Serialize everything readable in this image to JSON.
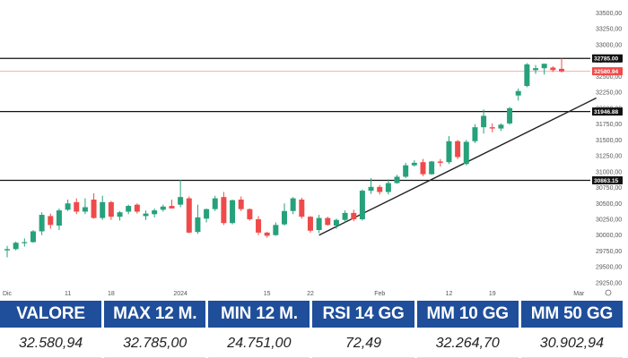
{
  "chart_data": {
    "type": "candlestick",
    "y_ticks": [
      "33500,00",
      "33250,00",
      "33000,00",
      "32750,00",
      "32500,00",
      "32250,00",
      "32000,00",
      "31750,00",
      "31500,00",
      "31250,00",
      "31000,00",
      "30750,00",
      "30500,00",
      "30250,00",
      "30000,00",
      "29750,00",
      "29500,00",
      "29250,00"
    ],
    "ylim": [
      29150,
      33620
    ],
    "x_labels": [
      {
        "text": "Dic",
        "index": 0
      },
      {
        "text": "11",
        "index": 7
      },
      {
        "text": "18",
        "index": 12
      },
      {
        "text": "2024",
        "index": 20
      },
      {
        "text": "15",
        "index": 30
      },
      {
        "text": "22",
        "index": 35
      },
      {
        "text": "Feb",
        "index": 43
      },
      {
        "text": "12",
        "index": 51
      },
      {
        "text": "19",
        "index": 56
      },
      {
        "text": "Mar",
        "index": 66
      }
    ],
    "candles": [
      {
        "o": 29760,
        "h": 29830,
        "l": 29650,
        "c": 29780
      },
      {
        "o": 29780,
        "h": 29900,
        "l": 29760,
        "c": 29880
      },
      {
        "o": 29880,
        "h": 29950,
        "l": 29820,
        "c": 29890
      },
      {
        "o": 29890,
        "h": 30080,
        "l": 29880,
        "c": 30060
      },
      {
        "o": 30060,
        "h": 30360,
        "l": 30000,
        "c": 30320
      },
      {
        "o": 30300,
        "h": 30340,
        "l": 30100,
        "c": 30160
      },
      {
        "o": 30150,
        "h": 30420,
        "l": 30080,
        "c": 30390
      },
      {
        "o": 30400,
        "h": 30560,
        "l": 30380,
        "c": 30500
      },
      {
        "o": 30520,
        "h": 30580,
        "l": 30330,
        "c": 30370
      },
      {
        "o": 30370,
        "h": 30580,
        "l": 30330,
        "c": 30440
      },
      {
        "o": 30560,
        "h": 30660,
        "l": 30260,
        "c": 30270
      },
      {
        "o": 30270,
        "h": 30620,
        "l": 30240,
        "c": 30520
      },
      {
        "o": 30520,
        "h": 30540,
        "l": 30240,
        "c": 30290
      },
      {
        "o": 30290,
        "h": 30380,
        "l": 30230,
        "c": 30360
      },
      {
        "o": 30370,
        "h": 30480,
        "l": 30330,
        "c": 30460
      },
      {
        "o": 30480,
        "h": 30500,
        "l": 30340,
        "c": 30370
      },
      {
        "o": 30300,
        "h": 30390,
        "l": 30240,
        "c": 30340
      },
      {
        "o": 30330,
        "h": 30420,
        "l": 30280,
        "c": 30390
      },
      {
        "o": 30400,
        "h": 30480,
        "l": 30370,
        "c": 30450
      },
      {
        "o": 30460,
        "h": 30560,
        "l": 30420,
        "c": 30420
      },
      {
        "o": 30480,
        "h": 30870,
        "l": 30440,
        "c": 30600
      },
      {
        "o": 30580,
        "h": 30610,
        "l": 30030,
        "c": 30040
      },
      {
        "o": 30050,
        "h": 30480,
        "l": 30020,
        "c": 30280
      },
      {
        "o": 30260,
        "h": 30420,
        "l": 30200,
        "c": 30410
      },
      {
        "o": 30410,
        "h": 30620,
        "l": 30380,
        "c": 30580
      },
      {
        "o": 30600,
        "h": 30680,
        "l": 30160,
        "c": 30190
      },
      {
        "o": 30190,
        "h": 30560,
        "l": 30170,
        "c": 30550
      },
      {
        "o": 30560,
        "h": 30610,
        "l": 30380,
        "c": 30410
      },
      {
        "o": 30410,
        "h": 30420,
        "l": 30230,
        "c": 30250
      },
      {
        "o": 30250,
        "h": 30300,
        "l": 30000,
        "c": 30040
      },
      {
        "o": 30040,
        "h": 30050,
        "l": 29960,
        "c": 29990
      },
      {
        "o": 30000,
        "h": 30200,
        "l": 29990,
        "c": 30160
      },
      {
        "o": 30170,
        "h": 30500,
        "l": 30150,
        "c": 30380
      },
      {
        "o": 30380,
        "h": 30600,
        "l": 30330,
        "c": 30580
      },
      {
        "o": 30560,
        "h": 30590,
        "l": 30260,
        "c": 30290
      },
      {
        "o": 30290,
        "h": 30300,
        "l": 30040,
        "c": 30070
      },
      {
        "o": 30080,
        "h": 30320,
        "l": 30030,
        "c": 30270
      },
      {
        "o": 30270,
        "h": 30290,
        "l": 30150,
        "c": 30160
      },
      {
        "o": 30150,
        "h": 30260,
        "l": 30100,
        "c": 30240
      },
      {
        "o": 30240,
        "h": 30390,
        "l": 30200,
        "c": 30350
      },
      {
        "o": 30350,
        "h": 30400,
        "l": 30220,
        "c": 30250
      },
      {
        "o": 30250,
        "h": 30720,
        "l": 30230,
        "c": 30700
      },
      {
        "o": 30700,
        "h": 30900,
        "l": 30650,
        "c": 30760
      },
      {
        "o": 30760,
        "h": 30790,
        "l": 30640,
        "c": 30680
      },
      {
        "o": 30680,
        "h": 30880,
        "l": 30640,
        "c": 30820
      },
      {
        "o": 30820,
        "h": 30950,
        "l": 30810,
        "c": 30920
      },
      {
        "o": 30920,
        "h": 31140,
        "l": 30900,
        "c": 31100
      },
      {
        "o": 31100,
        "h": 31180,
        "l": 31080,
        "c": 31140
      },
      {
        "o": 31150,
        "h": 31200,
        "l": 30930,
        "c": 30960
      },
      {
        "o": 30960,
        "h": 31170,
        "l": 30950,
        "c": 31160
      },
      {
        "o": 31160,
        "h": 31200,
        "l": 31080,
        "c": 31140
      },
      {
        "o": 31150,
        "h": 31560,
        "l": 31120,
        "c": 31480
      },
      {
        "o": 31480,
        "h": 31500,
        "l": 31200,
        "c": 31230
      },
      {
        "o": 31120,
        "h": 31500,
        "l": 31100,
        "c": 31470
      },
      {
        "o": 31480,
        "h": 31750,
        "l": 31450,
        "c": 31700
      },
      {
        "o": 31700,
        "h": 31980,
        "l": 31600,
        "c": 31880
      },
      {
        "o": 31700,
        "h": 31760,
        "l": 31620,
        "c": 31680
      },
      {
        "o": 31680,
        "h": 31760,
        "l": 31640,
        "c": 31740
      },
      {
        "o": 31760,
        "h": 32020,
        "l": 31740,
        "c": 32000
      },
      {
        "o": 32200,
        "h": 32310,
        "l": 32120,
        "c": 32270
      },
      {
        "o": 32350,
        "h": 32710,
        "l": 32330,
        "c": 32690
      },
      {
        "o": 32600,
        "h": 32680,
        "l": 32540,
        "c": 32630
      },
      {
        "o": 32630,
        "h": 32700,
        "l": 32530,
        "c": 32700
      },
      {
        "o": 32640,
        "h": 32660,
        "l": 32570,
        "c": 32600
      },
      {
        "o": 32620,
        "h": 32790,
        "l": 32560,
        "c": 32580
      }
    ],
    "levels": [
      {
        "value": 32785.0,
        "label": "32785.00",
        "style": "dark"
      },
      {
        "value": 32580.94,
        "label": "32580.94",
        "style": "red"
      },
      {
        "value": 31946.88,
        "label": "31946.88",
        "style": "dark"
      },
      {
        "value": 30863.15,
        "label": "30863.15",
        "style": "dark"
      }
    ],
    "trendline": {
      "from": {
        "index": 36,
        "value": 30000
      },
      "to": {
        "index": 68,
        "value": 32160
      }
    }
  },
  "stats": {
    "headers": [
      "VALORE",
      "MAX 12 M.",
      "MIN 12 M.",
      "RSI 14 GG",
      "MM 10 GG",
      "MM 50 GG"
    ],
    "values": [
      "32.580,94",
      "32.785,00",
      "24.751,00",
      "72,49",
      "32.264,70",
      "30.902,94"
    ]
  },
  "colors": {
    "up": "#26a17b",
    "down": "#ef4a4a",
    "level": "#111111",
    "current": "#ef4a4a",
    "header_bg": "#1f4e9a"
  }
}
